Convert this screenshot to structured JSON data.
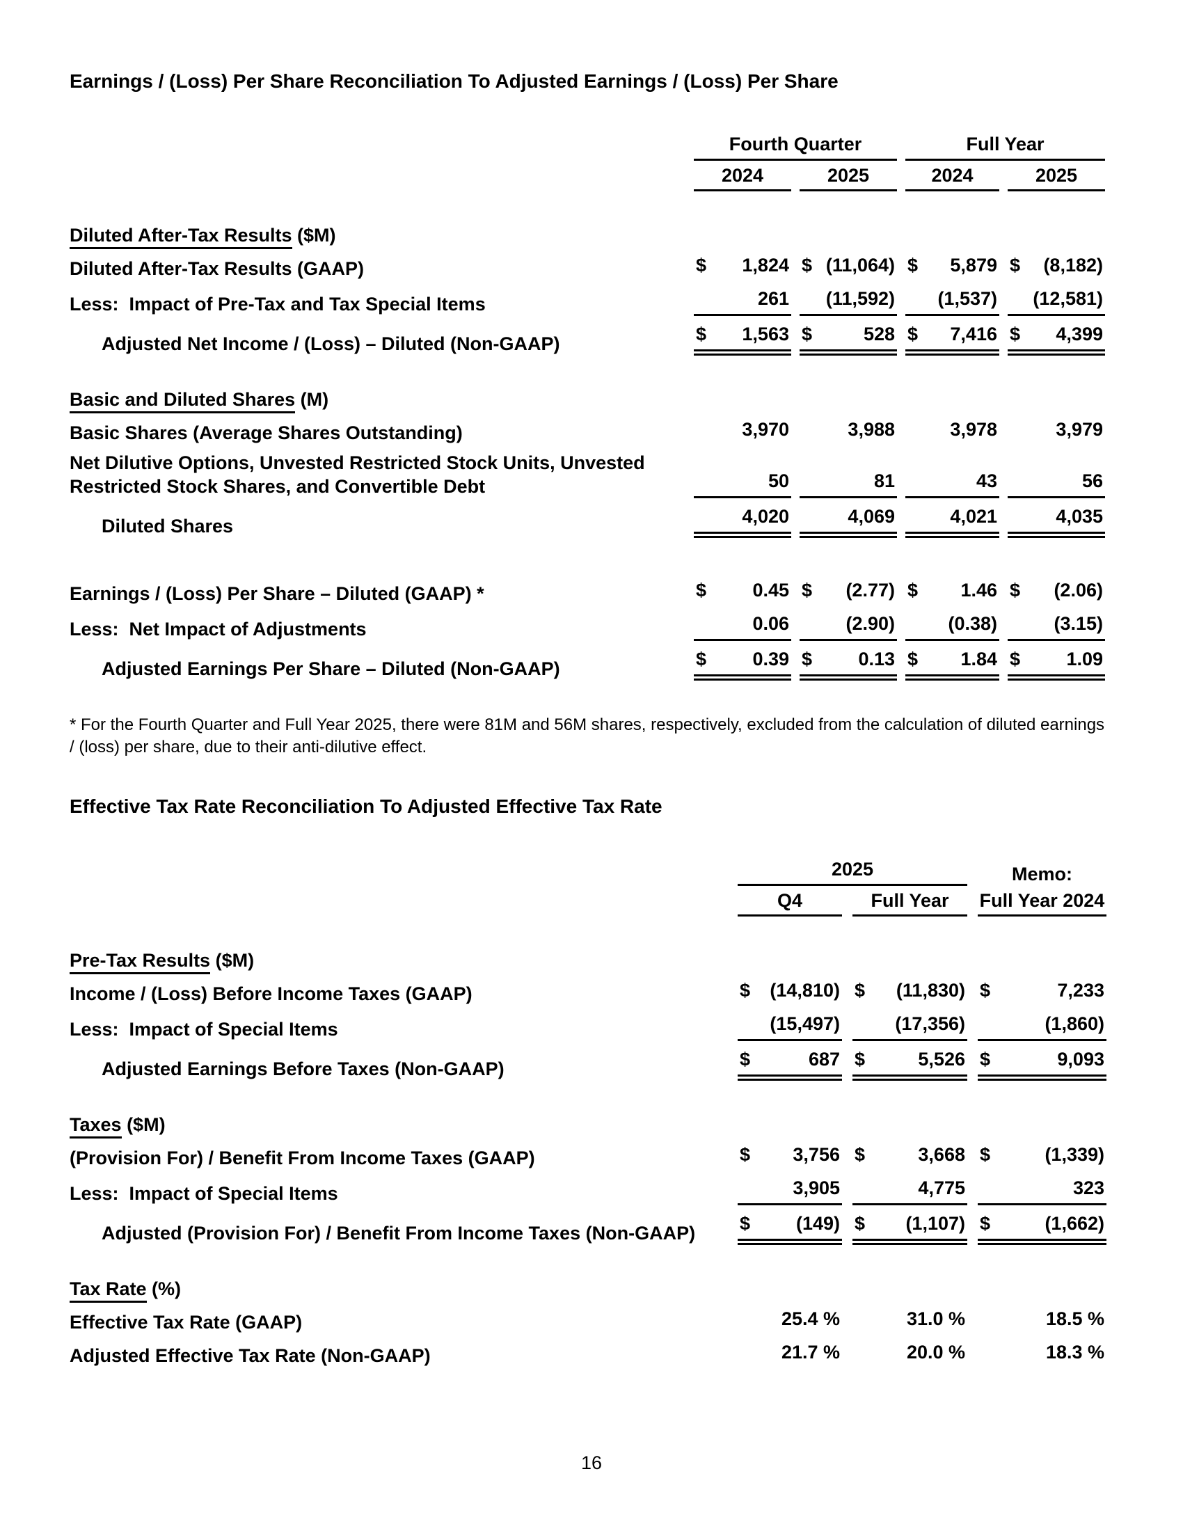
{
  "doc": {
    "page_number": "16",
    "currency_symbol": "$"
  },
  "eps_table": {
    "title": "Earnings / (Loss) Per Share Reconciliation To Adjusted Earnings / (Loss) Per Share",
    "group_headers": [
      "Fourth Quarter",
      "Full Year"
    ],
    "year_headers": [
      "2024",
      "2025",
      "2024",
      "2025"
    ],
    "sections": [
      {
        "heading": "Diluted After-Tax Results",
        "unit": "($M)",
        "rows": [
          {
            "label": "Diluted After-Tax Results (GAAP)",
            "indent": false,
            "dollar": true,
            "underline": "none",
            "values": [
              "1,824",
              "(11,064)",
              "5,879",
              "(8,182)"
            ]
          },
          {
            "label": "Less:  Impact of Pre-Tax and Tax Special Items",
            "indent": false,
            "dollar": false,
            "underline": "single",
            "values": [
              "261",
              "(11,592)",
              "(1,537)",
              "(12,581)"
            ]
          },
          {
            "label": "Adjusted Net Income / (Loss) – Diluted (Non-GAAP)",
            "indent": true,
            "dollar": true,
            "underline": "double",
            "values": [
              "1,563",
              "528",
              "7,416",
              "4,399"
            ]
          }
        ]
      },
      {
        "heading": "Basic and Diluted Shares",
        "unit": "(M)",
        "rows": [
          {
            "label": "Basic Shares (Average Shares Outstanding)",
            "indent": false,
            "dollar": false,
            "underline": "none",
            "values": [
              "3,970",
              "3,988",
              "3,978",
              "3,979"
            ]
          },
          {
            "label": "Net Dilutive Options, Unvested Restricted Stock Units, Unvested Restricted Stock Shares, and Convertible Debt",
            "wrap": true,
            "indent": false,
            "dollar": false,
            "underline": "single",
            "values": [
              "50",
              "81",
              "43",
              "56"
            ]
          },
          {
            "label": "Diluted Shares",
            "indent": true,
            "dollar": false,
            "underline": "double",
            "values": [
              "4,020",
              "4,069",
              "4,021",
              "4,035"
            ]
          }
        ]
      },
      {
        "heading": "",
        "unit": "",
        "rows": [
          {
            "label": "Earnings / (Loss) Per Share – Diluted (GAAP) *",
            "indent": false,
            "dollar": true,
            "underline": "none",
            "values": [
              "0.45",
              "(2.77)",
              "1.46",
              "(2.06)"
            ]
          },
          {
            "label": "Less:  Net Impact of Adjustments",
            "indent": false,
            "dollar": false,
            "underline": "single",
            "values": [
              "0.06",
              "(2.90)",
              "(0.38)",
              "(3.15)"
            ]
          },
          {
            "label": "Adjusted Earnings Per Share – Diluted (Non-GAAP)",
            "indent": true,
            "dollar": true,
            "underline": "double",
            "values": [
              "0.39",
              "0.13",
              "1.84",
              "1.09"
            ]
          }
        ]
      }
    ]
  },
  "footnote": "* For the Fourth Quarter and Full Year 2025, there were 81M and 56M shares, respectively, excluded from the calculation of diluted earnings / (loss) per share, due to their anti-dilutive effect.",
  "tax_table": {
    "title": "Effective Tax Rate Reconciliation To Adjusted Effective Tax Rate",
    "group_header": "2025",
    "memo_header": "Memo:",
    "col_headers": [
      "Q4",
      "Full Year",
      "Full Year 2024"
    ],
    "sections": [
      {
        "heading": "Pre-Tax Results",
        "unit": "($M)",
        "rows": [
          {
            "label": "Income / (Loss) Before Income Taxes (GAAP)",
            "indent": false,
            "dollar": true,
            "underline": "none",
            "values": [
              "(14,810)",
              "(11,830)",
              "7,233"
            ]
          },
          {
            "label": "Less:  Impact of Special Items",
            "indent": false,
            "dollar": false,
            "underline": "single",
            "values": [
              "(15,497)",
              "(17,356)",
              "(1,860)"
            ]
          },
          {
            "label": "Adjusted Earnings Before Taxes (Non-GAAP)",
            "indent": true,
            "dollar": true,
            "underline": "double",
            "values": [
              "687",
              "5,526",
              "9,093"
            ]
          }
        ]
      },
      {
        "heading": "Taxes",
        "unit": "($M)",
        "rows": [
          {
            "label": "(Provision For) / Benefit From Income Taxes (GAAP)",
            "indent": false,
            "dollar": true,
            "underline": "none",
            "values": [
              "3,756",
              "3,668",
              "(1,339)"
            ]
          },
          {
            "label": "Less:  Impact of Special Items",
            "indent": false,
            "dollar": false,
            "underline": "single",
            "values": [
              "3,905",
              "4,775",
              "323"
            ]
          },
          {
            "label": "Adjusted (Provision For) / Benefit From Income Taxes (Non-GAAP)",
            "indent": true,
            "dollar": true,
            "underline": "double",
            "values": [
              "(149)",
              "(1,107)",
              "(1,662)"
            ]
          }
        ]
      },
      {
        "heading": "Tax Rate",
        "unit": "(%)",
        "rows": [
          {
            "label": "Effective Tax Rate (GAAP)",
            "indent": false,
            "dollar": false,
            "underline": "none",
            "values": [
              "25.4 %",
              "31.0 %",
              "18.5 %"
            ]
          },
          {
            "label": "Adjusted Effective Tax Rate (Non-GAAP)",
            "indent": false,
            "dollar": false,
            "underline": "none",
            "values": [
              "21.7 %",
              "20.0 %",
              "18.3 %"
            ]
          }
        ]
      }
    ]
  }
}
